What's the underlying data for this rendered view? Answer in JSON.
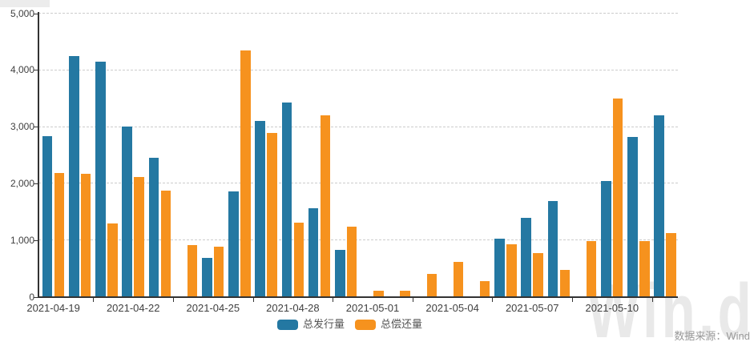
{
  "chart_data": {
    "type": "bar",
    "title": "",
    "categories": [
      "2021-04-19",
      "2021-04-20",
      "2021-04-21",
      "2021-04-22",
      "2021-04-23",
      "2021-04-24",
      "2021-04-25",
      "2021-04-26",
      "2021-04-27",
      "2021-04-28",
      "2021-04-29",
      "2021-04-30",
      "2021-05-01",
      "2021-05-02",
      "2021-05-03",
      "2021-05-04",
      "2021-05-05",
      "2021-05-06",
      "2021-05-07",
      "2021-05-08",
      "2021-05-09",
      "2021-05-10",
      "2021-05-11",
      "2021-05-12"
    ],
    "series": [
      {
        "name": "总发行量",
        "color": "#2478a2",
        "values": [
          2840,
          4240,
          4150,
          3000,
          2450,
          0,
          690,
          1860,
          3100,
          3430,
          1560,
          820,
          0,
          0,
          0,
          0,
          0,
          1020,
          1390,
          1690,
          0,
          2040,
          2820,
          3200
        ]
      },
      {
        "name": "总偿还量",
        "color": "#f6921e",
        "values": [
          2190,
          2170,
          1290,
          2110,
          1870,
          910,
          880,
          4350,
          2890,
          1310,
          3200,
          1230,
          110,
          110,
          400,
          620,
          270,
          920,
          770,
          470,
          980,
          3500,
          980,
          1120
        ]
      }
    ],
    "xlabel": "",
    "ylabel": "",
    "ylim": [
      0,
      5000
    ],
    "y_tick_values": [
      5000,
      4000,
      3000,
      2000,
      1000,
      0
    ],
    "y_tick_labels": [
      "5,000",
      "4,000",
      "3,000",
      "2,000",
      "1,000",
      "0"
    ],
    "x_shown_tick_labels": [
      "2021-04-19",
      "2021-04-22",
      "2021-04-25",
      "2021-04-28",
      "2021-05-01",
      "2021-05-04",
      "2021-05-07",
      "2021-05-10"
    ],
    "x_label_interval": 3,
    "grid": true,
    "legend_position": "bottom-center"
  },
  "legend": {
    "items": [
      {
        "label": "总发行量",
        "color": "#2478a2"
      },
      {
        "label": "总偿还量",
        "color": "#f6921e"
      }
    ]
  },
  "source_label": "数据来源：Wind",
  "watermark_text": "Win.d",
  "colors": {
    "series_blue": "#2478a2",
    "series_orange": "#f6921e",
    "axis": "#333333",
    "grid": "#cccccc",
    "tick_text": "#404040",
    "legend_text": "#555555",
    "source_text": "#999999",
    "watermark": "#e9e9e9"
  }
}
